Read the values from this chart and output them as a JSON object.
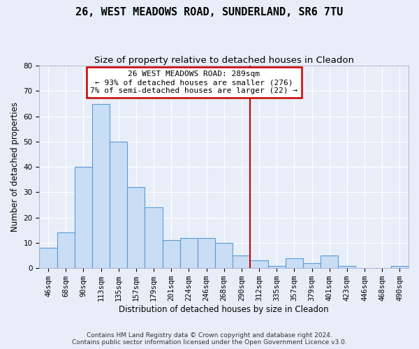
{
  "title": "26, WEST MEADOWS ROAD, SUNDERLAND, SR6 7TU",
  "subtitle": "Size of property relative to detached houses in Cleadon",
  "xlabel": "Distribution of detached houses by size in Cleadon",
  "ylabel": "Number of detached properties",
  "footer_line1": "Contains HM Land Registry data © Crown copyright and database right 2024.",
  "footer_line2": "Contains public sector information licensed under the Open Government Licence v3.0.",
  "bar_labels": [
    "46sqm",
    "68sqm",
    "90sqm",
    "113sqm",
    "135sqm",
    "157sqm",
    "179sqm",
    "201sqm",
    "224sqm",
    "246sqm",
    "268sqm",
    "290sqm",
    "312sqm",
    "335sqm",
    "357sqm",
    "379sqm",
    "401sqm",
    "423sqm",
    "446sqm",
    "468sqm",
    "490sqm"
  ],
  "bar_values": [
    8,
    14,
    40,
    65,
    50,
    32,
    24,
    11,
    12,
    12,
    10,
    5,
    3,
    1,
    4,
    2,
    5,
    1,
    0,
    0,
    1
  ],
  "bar_color": "#c9ddf5",
  "bar_edge_color": "#5b9bd5",
  "highlight_line_index": 11,
  "highlight_line_color": "#cc0000",
  "annotation_text": "26 WEST MEADOWS ROAD: 289sqm\n← 93% of detached houses are smaller (276)\n7% of semi-detached houses are larger (22) →",
  "annotation_box_facecolor": "#ffffff",
  "annotation_border_color": "#cc0000",
  "ylim": [
    0,
    80
  ],
  "yticks": [
    0,
    10,
    20,
    30,
    40,
    50,
    60,
    70,
    80
  ],
  "background_color": "#e8eef8",
  "grid_color": "#d0d8e8",
  "title_fontsize": 11,
  "subtitle_fontsize": 9.5,
  "axis_label_fontsize": 8.5,
  "tick_fontsize": 7.5,
  "footer_fontsize": 6.5
}
